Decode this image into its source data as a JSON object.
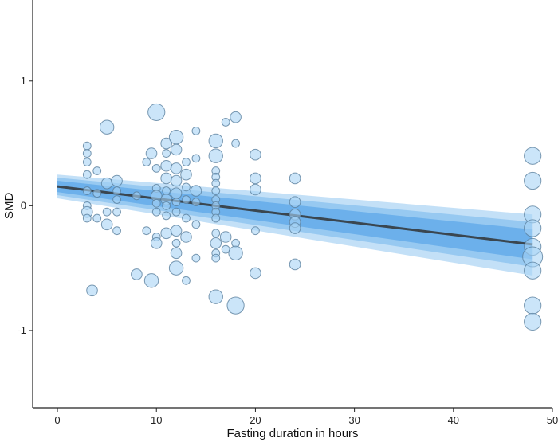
{
  "chart_data": {
    "type": "scatter",
    "title": "",
    "xlabel": "Fasting duration in hours",
    "ylabel": "SMD",
    "xlim": [
      -2.5,
      50
    ],
    "ylim": [
      -1.62,
      1.65
    ],
    "x_ticks": [
      0,
      10,
      20,
      30,
      40,
      50
    ],
    "y_ticks": [
      -1,
      0,
      1
    ],
    "x_tick_labels": [
      "0",
      "10",
      "20",
      "30",
      "40",
      "50"
    ],
    "y_tick_labels": [
      "-1",
      "0",
      "1"
    ],
    "grid": false,
    "legend": "none",
    "colors": {
      "point_fill": "#a9d3f5",
      "point_stroke": "#5a7f9e",
      "band_outer": "#b9dbf6",
      "band_mid": "#8fc4f0",
      "band_inner": "#64acea",
      "fit_line": "#3a4650",
      "axis": "#222222"
    },
    "regression": {
      "intercept": 0.155,
      "slope": -0.0097,
      "x_range": [
        0,
        48
      ],
      "ci_bands": [
        {
          "level": "outer",
          "lower_at_0": 0.06,
          "upper_at_0": 0.25,
          "lower_at_48": -0.56,
          "upper_at_48": -0.07
        },
        {
          "level": "mid",
          "lower_at_0": 0.085,
          "upper_at_0": 0.225,
          "lower_at_48": -0.49,
          "upper_at_48": -0.13
        },
        {
          "level": "inner",
          "lower_at_0": 0.11,
          "upper_at_0": 0.2,
          "lower_at_48": -0.43,
          "upper_at_48": -0.19
        }
      ]
    },
    "points": [
      {
        "x": 3,
        "y": 0.48,
        "w": 1
      },
      {
        "x": 3,
        "y": 0.42,
        "w": 1
      },
      {
        "x": 3,
        "y": 0.35,
        "w": 1
      },
      {
        "x": 3,
        "y": 0.25,
        "w": 1
      },
      {
        "x": 3,
        "y": 0.12,
        "w": 1
      },
      {
        "x": 3,
        "y": 0.0,
        "w": 1
      },
      {
        "x": 3,
        "y": -0.05,
        "w": 2
      },
      {
        "x": 3,
        "y": -0.1,
        "w": 1
      },
      {
        "x": 3.5,
        "y": -0.68,
        "w": 2
      },
      {
        "x": 4,
        "y": 0.28,
        "w": 1
      },
      {
        "x": 4,
        "y": 0.1,
        "w": 1
      },
      {
        "x": 4,
        "y": -0.1,
        "w": 1
      },
      {
        "x": 5,
        "y": 0.63,
        "w": 3
      },
      {
        "x": 5,
        "y": 0.18,
        "w": 2
      },
      {
        "x": 5,
        "y": -0.05,
        "w": 1
      },
      {
        "x": 5,
        "y": -0.15,
        "w": 2
      },
      {
        "x": 6,
        "y": 0.2,
        "w": 2
      },
      {
        "x": 6,
        "y": 0.12,
        "w": 1
      },
      {
        "x": 6,
        "y": 0.05,
        "w": 1
      },
      {
        "x": 6,
        "y": -0.05,
        "w": 1
      },
      {
        "x": 6,
        "y": -0.2,
        "w": 1
      },
      {
        "x": 8,
        "y": -0.55,
        "w": 2
      },
      {
        "x": 8,
        "y": 0.08,
        "w": 1
      },
      {
        "x": 9,
        "y": 0.35,
        "w": 1
      },
      {
        "x": 9,
        "y": -0.2,
        "w": 1
      },
      {
        "x": 9.5,
        "y": 0.42,
        "w": 2
      },
      {
        "x": 9.5,
        "y": -0.6,
        "w": 3
      },
      {
        "x": 10,
        "y": 0.75,
        "w": 4
      },
      {
        "x": 10,
        "y": 0.3,
        "w": 1
      },
      {
        "x": 10,
        "y": 0.14,
        "w": 1
      },
      {
        "x": 10,
        "y": 0.08,
        "w": 2
      },
      {
        "x": 10,
        "y": 0.02,
        "w": 1
      },
      {
        "x": 10,
        "y": -0.05,
        "w": 1
      },
      {
        "x": 10,
        "y": -0.25,
        "w": 1
      },
      {
        "x": 10,
        "y": -0.3,
        "w": 2
      },
      {
        "x": 11,
        "y": 0.5,
        "w": 2
      },
      {
        "x": 11,
        "y": 0.42,
        "w": 1
      },
      {
        "x": 11,
        "y": 0.32,
        "w": 2
      },
      {
        "x": 11,
        "y": 0.22,
        "w": 2
      },
      {
        "x": 11,
        "y": 0.12,
        "w": 1
      },
      {
        "x": 11,
        "y": 0.05,
        "w": 2
      },
      {
        "x": 11,
        "y": 0.0,
        "w": 1
      },
      {
        "x": 11,
        "y": -0.08,
        "w": 1
      },
      {
        "x": 11,
        "y": -0.22,
        "w": 2
      },
      {
        "x": 12,
        "y": 0.55,
        "w": 3
      },
      {
        "x": 12,
        "y": 0.45,
        "w": 2
      },
      {
        "x": 12,
        "y": 0.3,
        "w": 2
      },
      {
        "x": 12,
        "y": 0.2,
        "w": 2
      },
      {
        "x": 12,
        "y": 0.1,
        "w": 2
      },
      {
        "x": 12,
        "y": 0.03,
        "w": 1
      },
      {
        "x": 12,
        "y": -0.05,
        "w": 1
      },
      {
        "x": 12,
        "y": -0.2,
        "w": 2
      },
      {
        "x": 12,
        "y": -0.3,
        "w": 1
      },
      {
        "x": 12,
        "y": -0.38,
        "w": 2
      },
      {
        "x": 12,
        "y": -0.5,
        "w": 3
      },
      {
        "x": 13,
        "y": 0.35,
        "w": 1
      },
      {
        "x": 13,
        "y": 0.25,
        "w": 2
      },
      {
        "x": 13,
        "y": 0.15,
        "w": 1
      },
      {
        "x": 13,
        "y": 0.05,
        "w": 1
      },
      {
        "x": 13,
        "y": -0.1,
        "w": 1
      },
      {
        "x": 13,
        "y": -0.25,
        "w": 2
      },
      {
        "x": 13,
        "y": -0.6,
        "w": 1
      },
      {
        "x": 14,
        "y": 0.6,
        "w": 1
      },
      {
        "x": 14,
        "y": 0.38,
        "w": 1
      },
      {
        "x": 14,
        "y": 0.12,
        "w": 2
      },
      {
        "x": 14,
        "y": 0.03,
        "w": 1
      },
      {
        "x": 14,
        "y": -0.15,
        "w": 1
      },
      {
        "x": 14,
        "y": -0.42,
        "w": 1
      },
      {
        "x": 16,
        "y": 0.52,
        "w": 3
      },
      {
        "x": 16,
        "y": 0.4,
        "w": 3
      },
      {
        "x": 16,
        "y": 0.28,
        "w": 1
      },
      {
        "x": 16,
        "y": 0.23,
        "w": 1
      },
      {
        "x": 16,
        "y": 0.18,
        "w": 1
      },
      {
        "x": 16,
        "y": 0.12,
        "w": 1
      },
      {
        "x": 16,
        "y": 0.05,
        "w": 1
      },
      {
        "x": 16,
        "y": 0.0,
        "w": 1
      },
      {
        "x": 16,
        "y": -0.05,
        "w": 1
      },
      {
        "x": 16,
        "y": -0.1,
        "w": 1
      },
      {
        "x": 16,
        "y": -0.22,
        "w": 1
      },
      {
        "x": 16,
        "y": -0.3,
        "w": 2
      },
      {
        "x": 16,
        "y": -0.38,
        "w": 1
      },
      {
        "x": 16,
        "y": -0.42,
        "w": 1
      },
      {
        "x": 16,
        "y": -0.73,
        "w": 3
      },
      {
        "x": 17,
        "y": 0.67,
        "w": 1
      },
      {
        "x": 17,
        "y": -0.25,
        "w": 2
      },
      {
        "x": 17,
        "y": -0.35,
        "w": 1
      },
      {
        "x": 18,
        "y": 0.71,
        "w": 2
      },
      {
        "x": 18,
        "y": 0.5,
        "w": 1
      },
      {
        "x": 18,
        "y": -0.3,
        "w": 1
      },
      {
        "x": 18,
        "y": -0.38,
        "w": 3
      },
      {
        "x": 18,
        "y": -0.8,
        "w": 4
      },
      {
        "x": 20,
        "y": 0.41,
        "w": 2
      },
      {
        "x": 20,
        "y": 0.22,
        "w": 2
      },
      {
        "x": 20,
        "y": 0.13,
        "w": 2
      },
      {
        "x": 20,
        "y": -0.2,
        "w": 1
      },
      {
        "x": 20,
        "y": -0.54,
        "w": 2
      },
      {
        "x": 24,
        "y": 0.22,
        "w": 2
      },
      {
        "x": 24,
        "y": 0.03,
        "w": 2
      },
      {
        "x": 24,
        "y": -0.07,
        "w": 2
      },
      {
        "x": 24,
        "y": -0.13,
        "w": 2
      },
      {
        "x": 24,
        "y": -0.18,
        "w": 2
      },
      {
        "x": 24,
        "y": -0.47,
        "w": 2
      },
      {
        "x": 48,
        "y": 0.4,
        "w": 4
      },
      {
        "x": 48,
        "y": 0.2,
        "w": 4
      },
      {
        "x": 48,
        "y": -0.07,
        "w": 4
      },
      {
        "x": 48,
        "y": -0.18,
        "w": 4
      },
      {
        "x": 48,
        "y": -0.33,
        "w": 4
      },
      {
        "x": 48,
        "y": -0.41,
        "w": 5
      },
      {
        "x": 48,
        "y": -0.52,
        "w": 4
      },
      {
        "x": 48,
        "y": -0.8,
        "w": 4
      },
      {
        "x": 48,
        "y": -0.93,
        "w": 4
      }
    ]
  }
}
